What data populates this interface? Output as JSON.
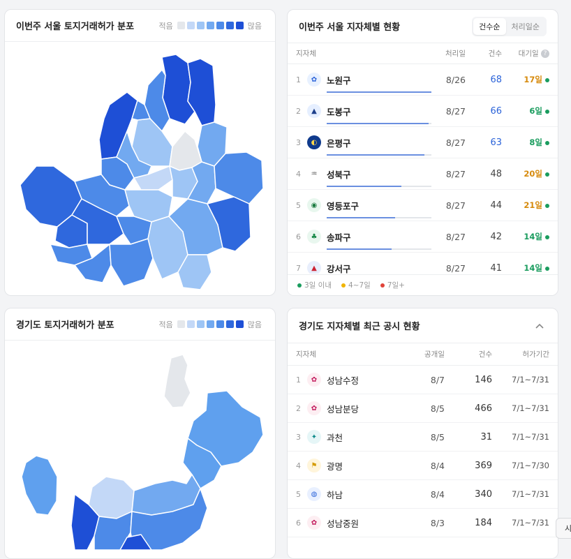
{
  "seoul_map": {
    "title": "이번주 서울 토지거래허가 분포",
    "legend_low": "적음",
    "legend_high": "많음",
    "legend_colors": [
      "#e4e7eb",
      "#c3d8f7",
      "#9ec5f5",
      "#72a9f0",
      "#4d8ae8",
      "#2f68dd",
      "#1e4fd6"
    ]
  },
  "seoul_table": {
    "title": "이번주 서울 지자체별 현황",
    "sort_options": [
      "건수순",
      "처리일순"
    ],
    "sort_selected": "건수순",
    "headers": {
      "name": "지자체",
      "date": "처리일",
      "count": "건수",
      "wait": "대기일"
    },
    "info_icon": "question-icon",
    "rows": [
      {
        "rank": "1",
        "name": "노원구",
        "date": "8/26",
        "count": "68",
        "wait": "17일",
        "wait_color": "#d68a0c",
        "count_color": "#2b63d9",
        "bar": 1.0
      },
      {
        "rank": "2",
        "name": "도봉구",
        "date": "8/27",
        "count": "66",
        "wait": "6일",
        "wait_color": "#1a9c5e",
        "count_color": "#2b63d9",
        "bar": 0.97
      },
      {
        "rank": "3",
        "name": "은평구",
        "date": "8/27",
        "count": "63",
        "wait": "8일",
        "wait_color": "#1a9c5e",
        "count_color": "#2b63d9",
        "bar": 0.93
      },
      {
        "rank": "4",
        "name": "성북구",
        "date": "8/27",
        "count": "48",
        "wait": "20일",
        "wait_color": "#d68a0c",
        "count_color": "#444",
        "bar": 0.71
      },
      {
        "rank": "5",
        "name": "영등포구",
        "date": "8/27",
        "count": "44",
        "wait": "21일",
        "wait_color": "#d68a0c",
        "count_color": "#444",
        "bar": 0.65
      },
      {
        "rank": "6",
        "name": "송파구",
        "date": "8/27",
        "count": "42",
        "wait": "14일",
        "wait_color": "#1a9c5e",
        "count_color": "#444",
        "bar": 0.62
      },
      {
        "rank": "7",
        "name": "강서구",
        "date": "8/27",
        "count": "41",
        "wait": "14일",
        "wait_color": "#1a9c5e",
        "count_color": "#444",
        "bar": 0.6
      }
    ],
    "footer": [
      {
        "label": "3일 이내",
        "color": "#1a9c5e"
      },
      {
        "label": "4~7일",
        "color": "#f0b400"
      },
      {
        "label": "7일+",
        "color": "#e0443a"
      }
    ]
  },
  "gyeonggi_map": {
    "title": "경기도 토지거래허가 분포",
    "legend_low": "적음",
    "legend_high": "많음"
  },
  "gyeonggi_table": {
    "title": "경기도 지자체별 최근 공시 현황",
    "collapse_icon": "chevron-up-icon",
    "headers": {
      "name": "지자체",
      "date": "공개일",
      "count": "건수",
      "period": "허가기간"
    },
    "rows": [
      {
        "rank": "1",
        "name": "성남수정",
        "date": "8/7",
        "count": "146",
        "period": "7/1~7/31"
      },
      {
        "rank": "2",
        "name": "성남분당",
        "date": "8/5",
        "count": "466",
        "period": "7/1~7/31"
      },
      {
        "rank": "3",
        "name": "과천",
        "date": "8/5",
        "count": "31",
        "period": "7/1~7/31"
      },
      {
        "rank": "4",
        "name": "광명",
        "date": "8/4",
        "count": "369",
        "period": "7/1~7/30"
      },
      {
        "rank": "5",
        "name": "하남",
        "date": "8/4",
        "count": "340",
        "period": "7/1~7/31"
      },
      {
        "rank": "6",
        "name": "성남중원",
        "date": "8/3",
        "count": "184",
        "period": "7/1~7/31"
      }
    ]
  },
  "edge_button": {
    "label": "시"
  }
}
